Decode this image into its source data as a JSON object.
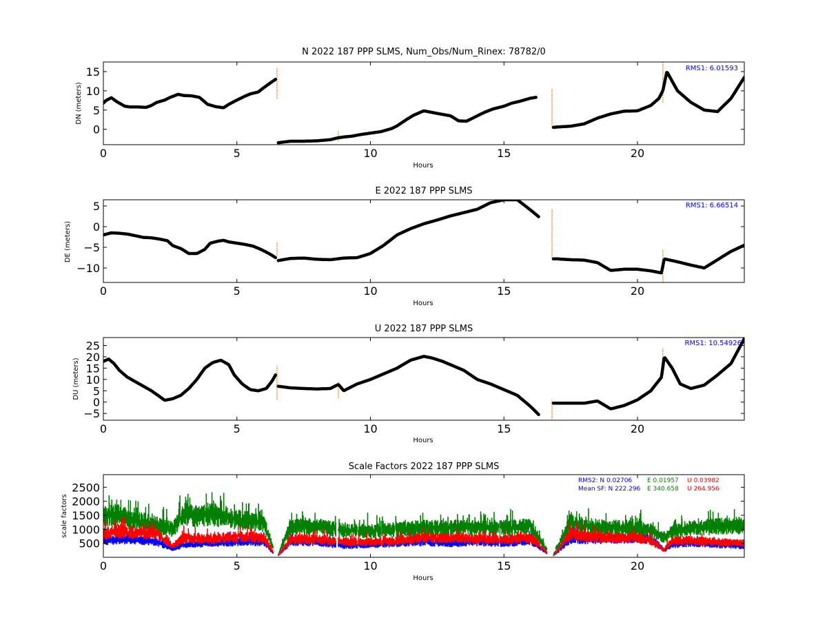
{
  "colors": {
    "points": "#000000",
    "outlier": "#ff7f0e",
    "rms_text": "#0000ff",
    "sf_n": "#0000ff",
    "sf_e": "#008000",
    "sf_u": "#ff0000"
  },
  "chart_data": [
    {
      "type": "scatter",
      "title": "N 2022 187 PPP  SLMS, Num_Obs/Num_Rinex: 78782/0",
      "xlabel": "Hours",
      "ylabel": "DN (meters)",
      "xlim": [
        0,
        24
      ],
      "ylim": [
        -4,
        17.5
      ],
      "xticks": [
        0,
        5,
        10,
        15,
        20
      ],
      "yticks": [
        0,
        5,
        10,
        15
      ],
      "annotation": "RMS1:  6.01593",
      "series": [
        {
          "x": [
            0,
            0.1,
            0.3,
            0.5,
            0.8,
            1.0,
            1.3,
            1.6,
            1.8,
            2.0,
            2.3,
            2.5,
            2.8,
            3.0,
            3.3,
            3.6,
            3.9,
            4.2,
            4.5,
            4.7,
            5.0,
            5.3,
            5.5,
            5.8,
            6.0,
            6.3,
            6.45
          ],
          "y": [
            6.8,
            7.5,
            8.2,
            7.2,
            6.0,
            5.8,
            5.8,
            5.7,
            6.2,
            7.0,
            7.6,
            8.3,
            9.1,
            8.8,
            8.7,
            8.3,
            6.5,
            5.9,
            5.6,
            6.5,
            7.6,
            8.6,
            9.2,
            9.7,
            10.8,
            12.3,
            13.0
          ]
        },
        {
          "x": [
            6.55,
            7.0,
            7.5,
            8.0,
            8.5,
            8.8,
            9.0,
            9.3,
            9.6,
            10.0,
            10.4,
            10.8,
            11.0,
            11.3,
            11.6,
            12.0,
            12.3,
            12.6,
            13.0,
            13.3,
            13.6,
            14.0,
            14.3,
            14.6,
            15.0,
            15.3,
            15.6,
            16.0,
            16.2
          ],
          "y": [
            -3.5,
            -3.1,
            -3.1,
            -3.0,
            -2.7,
            -2.2,
            -2.0,
            -1.8,
            -1.4,
            -1.0,
            -0.6,
            0.2,
            0.9,
            2.3,
            3.6,
            4.8,
            4.4,
            4.0,
            3.5,
            2.2,
            2.1,
            3.5,
            4.5,
            5.3,
            6.0,
            6.8,
            7.3,
            8.1,
            8.3
          ]
        },
        {
          "x": [
            16.85,
            17.0,
            17.5,
            18.0,
            18.5,
            19.0,
            19.5,
            20.0,
            20.5,
            20.8,
            20.95,
            21.1,
            21.3,
            21.5,
            22.0,
            22.5,
            23.0,
            23.5,
            24.0
          ],
          "y": [
            0.5,
            0.6,
            0.8,
            1.4,
            2.9,
            4.0,
            4.7,
            4.8,
            6.2,
            8.0,
            10.0,
            15.0,
            12.5,
            10.0,
            7.0,
            5.0,
            4.6,
            8.0,
            13.5
          ]
        }
      ],
      "outliers": [
        {
          "x": 6.5,
          "y": [
            8,
            16
          ]
        },
        {
          "x": 8.8,
          "y": [
            -3,
            -0.5
          ]
        },
        {
          "x": 16.8,
          "y": [
            1,
            10.5
          ]
        },
        {
          "x": 20.95,
          "y": [
            7,
            17.5
          ]
        }
      ]
    },
    {
      "type": "scatter",
      "title": "E 2022 187 PPP  SLMS",
      "xlabel": "Hours",
      "ylabel": "DE (meters)",
      "xlim": [
        0,
        24
      ],
      "ylim": [
        -13.5,
        6.5
      ],
      "xticks": [
        0,
        5,
        10,
        15,
        20
      ],
      "yticks": [
        -10,
        -5,
        0,
        5
      ],
      "annotation": "RMS1:  6.66514",
      "series": [
        {
          "x": [
            0,
            0.3,
            0.6,
            0.9,
            1.2,
            1.5,
            1.8,
            2.1,
            2.4,
            2.6,
            2.9,
            3.2,
            3.5,
            3.8,
            4.0,
            4.3,
            4.5,
            4.7,
            5.0,
            5.3,
            5.6,
            5.9,
            6.2,
            6.45
          ],
          "y": [
            -2.0,
            -1.5,
            -1.6,
            -1.8,
            -2.2,
            -2.6,
            -2.7,
            -3.0,
            -3.4,
            -4.6,
            -5.3,
            -6.5,
            -6.5,
            -5.5,
            -4.0,
            -3.5,
            -3.3,
            -3.7,
            -4.0,
            -4.3,
            -4.7,
            -5.5,
            -6.5,
            -7.5
          ]
        },
        {
          "x": [
            6.55,
            7.0,
            7.5,
            8.0,
            8.5,
            9.0,
            9.5,
            10.0,
            10.5,
            11.0,
            11.5,
            12.0,
            12.5,
            13.0,
            13.5,
            14.0,
            14.5,
            15.0,
            15.5,
            15.8,
            16.0,
            16.3
          ],
          "y": [
            -8.2,
            -7.7,
            -7.6,
            -7.9,
            -8.0,
            -7.6,
            -7.5,
            -6.5,
            -4.5,
            -2.0,
            -0.5,
            0.7,
            1.6,
            2.6,
            3.4,
            4.2,
            5.8,
            6.5,
            6.5,
            5.0,
            4.0,
            2.4
          ]
        },
        {
          "x": [
            16.85,
            17.0,
            17.5,
            18.0,
            18.5,
            19.0,
            19.5,
            20.0,
            20.5,
            20.9,
            21.0,
            21.5,
            22.0,
            22.5,
            23.0,
            23.5,
            24.0
          ],
          "y": [
            -7.8,
            -7.8,
            -8.0,
            -8.1,
            -8.7,
            -10.6,
            -10.3,
            -10.3,
            -10.7,
            -11.2,
            -7.8,
            -8.5,
            -9.3,
            -10.0,
            -8.0,
            -6.0,
            -4.5
          ]
        }
      ],
      "outliers": [
        {
          "x": 6.5,
          "y": [
            -7,
            -3.8
          ]
        },
        {
          "x": 16.8,
          "y": [
            -7.5,
            4.2
          ]
        },
        {
          "x": 20.95,
          "y": [
            -13.5,
            -5.5
          ]
        }
      ]
    },
    {
      "type": "scatter",
      "title": "U 2022 187 PPP  SLMS",
      "xlabel": "Hours",
      "ylabel": "DU (meters)",
      "xlim": [
        0,
        24
      ],
      "ylim": [
        -8,
        28.5
      ],
      "xticks": [
        0,
        5,
        10,
        15,
        20
      ],
      "yticks": [
        -5,
        0,
        5,
        10,
        15,
        20,
        25
      ],
      "annotation": "RMS1: 10.54926",
      "series": [
        {
          "x": [
            0,
            0.2,
            0.4,
            0.6,
            0.9,
            1.2,
            1.5,
            1.8,
            2.1,
            2.3,
            2.6,
            2.9,
            3.2,
            3.5,
            3.8,
            4.1,
            4.4,
            4.7,
            4.9,
            5.2,
            5.5,
            5.8,
            6.1,
            6.3,
            6.45
          ],
          "y": [
            18,
            19,
            17,
            14,
            11,
            9,
            7,
            5,
            2.5,
            0.8,
            1.5,
            3,
            6,
            10,
            15,
            17.5,
            18.5,
            16.5,
            12,
            8,
            5.5,
            5,
            6,
            9,
            12
          ]
        },
        {
          "x": [
            6.55,
            7.0,
            7.5,
            8.0,
            8.5,
            8.8,
            9.0,
            9.5,
            10.0,
            10.5,
            11.0,
            11.5,
            12.0,
            12.3,
            12.7,
            13.0,
            13.5,
            14.0,
            14.5,
            15.0,
            15.5,
            16.0,
            16.3
          ],
          "y": [
            7,
            6.3,
            6,
            5.8,
            6,
            7.8,
            5,
            8,
            10,
            12.5,
            15,
            18.5,
            20.2,
            19.5,
            18,
            16.5,
            14,
            10,
            8,
            5.5,
            3,
            -2,
            -5.5
          ]
        },
        {
          "x": [
            16.85,
            17.0,
            17.5,
            18.0,
            18.5,
            19.0,
            19.5,
            20.0,
            20.5,
            20.9,
            21.0,
            21.3,
            21.6,
            22.0,
            22.5,
            23.0,
            23.5,
            24.0
          ],
          "y": [
            -0.5,
            -0.5,
            -0.5,
            -0.5,
            0.5,
            -3,
            -1.5,
            1,
            5,
            11,
            20,
            15,
            8,
            6,
            7.5,
            12,
            17,
            28
          ]
        }
      ],
      "outliers": [
        {
          "x": 6.5,
          "y": [
            1,
            16
          ]
        },
        {
          "x": 8.8,
          "y": [
            2,
            9
          ]
        },
        {
          "x": 16.8,
          "y": [
            -7.5,
            1
          ]
        },
        {
          "x": 20.95,
          "y": [
            12,
            24
          ]
        }
      ]
    },
    {
      "type": "scatter",
      "title": "Scale Factors 2022 187 PPP  SLMS",
      "xlabel": "Hours",
      "ylabel": "scale factors",
      "xlim": [
        0,
        24
      ],
      "ylim": [
        0,
        2950
      ],
      "xticks": [
        0,
        5,
        10,
        15,
        20
      ],
      "yticks": [
        500,
        1000,
        1500,
        2000,
        2500
      ],
      "legend_text": {
        "rms2_label": "RMS2: N  0.02706",
        "rms2_e": "E  0.01957",
        "rms2_u": "U  0.03982",
        "mean_label": "Mean SF: N 222.296",
        "mean_e": "E 340.658",
        "mean_u": "U 264.956"
      },
      "segments": [
        [
          0,
          6.35
        ],
        [
          6.55,
          8.7
        ],
        [
          8.8,
          9.5
        ],
        [
          9.55,
          10.4
        ],
        [
          10.45,
          10.9
        ],
        [
          10.95,
          14.8
        ],
        [
          14.85,
          16.6
        ],
        [
          16.85,
          24
        ]
      ],
      "series": [
        {
          "name": "N",
          "color": "#0000ff",
          "x": [
            0,
            1,
            2,
            2.6,
            3,
            4,
            5,
            6,
            6.5,
            7,
            8,
            9,
            10,
            11,
            12,
            13,
            14,
            15,
            16,
            16.8,
            17.5,
            18,
            19,
            20,
            20.5,
            21,
            21.3,
            22,
            23,
            24
          ],
          "y": [
            600,
            650,
            550,
            300,
            450,
            500,
            550,
            550,
            0,
            550,
            550,
            400,
            450,
            500,
            550,
            500,
            550,
            500,
            600,
            0,
            650,
            650,
            650,
            700,
            650,
            250,
            450,
            500,
            450,
            400
          ]
        },
        {
          "name": "E",
          "color": "#008000",
          "x": [
            0,
            0.5,
            1,
            2,
            2.6,
            3,
            3.5,
            4,
            5,
            6,
            6.5,
            7,
            8,
            9,
            10,
            11,
            12,
            13,
            14,
            15,
            16,
            16.8,
            17.5,
            18,
            19,
            20,
            20.5,
            21,
            21.3,
            22,
            23,
            24
          ],
          "y": [
            1500,
            1550,
            1350,
            1150,
            1000,
            1550,
            1450,
            1550,
            1350,
            1200,
            0,
            1100,
            1100,
            950,
            950,
            1000,
            1050,
            1050,
            1050,
            1050,
            1100,
            0,
            1250,
            1100,
            1050,
            1050,
            950,
            700,
            900,
            1050,
            1100,
            1150
          ]
        },
        {
          "name": "U",
          "color": "#ff0000",
          "x": [
            0,
            0.5,
            1,
            2,
            2.6,
            3,
            4,
            5,
            6,
            6.5,
            7,
            8,
            9,
            10,
            11,
            12,
            13,
            14,
            15,
            16,
            16.8,
            17.5,
            18,
            19,
            20,
            20.5,
            21,
            21.3,
            22,
            23,
            24
          ],
          "y": [
            850,
            950,
            900,
            850,
            400,
            700,
            650,
            750,
            700,
            0,
            650,
            650,
            550,
            550,
            600,
            700,
            700,
            650,
            650,
            700,
            0,
            850,
            750,
            700,
            700,
            600,
            250,
            600,
            600,
            550,
            500
          ]
        }
      ]
    }
  ]
}
